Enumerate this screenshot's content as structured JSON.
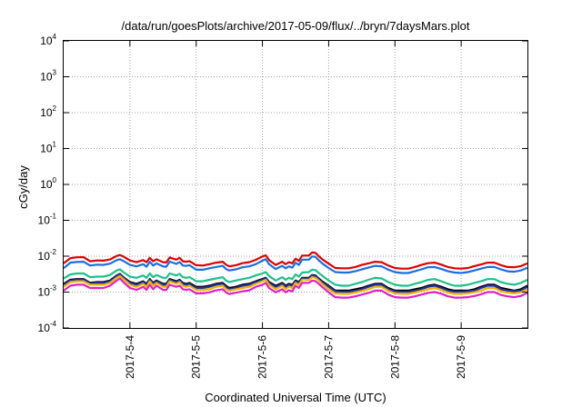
{
  "chart_data": {
    "type": "line",
    "title": "/data/run/goesPlots/archive/2017-05-09/flux/../bryn/7daysMars.plot",
    "xlabel": "Coordinated Universal Time (UTC)",
    "ylabel": "cGy/day",
    "yscale": "log",
    "ylim": [
      0.0001,
      10000
    ],
    "xlim": [
      "2017-05-03 00:00",
      "2017-05-10 00:00"
    ],
    "grid": true,
    "legend": "none",
    "y_ticks": [
      {
        "base": "10",
        "exp": "-4",
        "value": 0.0001
      },
      {
        "base": "10",
        "exp": "-3",
        "value": 0.001
      },
      {
        "base": "10",
        "exp": "-2",
        "value": 0.01
      },
      {
        "base": "10",
        "exp": "-1",
        "value": 0.1
      },
      {
        "base": "10",
        "exp": "0",
        "value": 1
      },
      {
        "base": "10",
        "exp": "1",
        "value": 10
      },
      {
        "base": "10",
        "exp": "2",
        "value": 100
      },
      {
        "base": "10",
        "exp": "3",
        "value": 1000
      },
      {
        "base": "10",
        "exp": "4",
        "value": 10000
      }
    ],
    "x_ticks": [
      {
        "label": "2017-5-4",
        "day": 4
      },
      {
        "label": "2017-5-5",
        "day": 5
      },
      {
        "label": "2017-5-6",
        "day": 6
      },
      {
        "label": "2017-5-7",
        "day": 7
      },
      {
        "label": "2017-5-8",
        "day": 8
      },
      {
        "label": "2017-5-9",
        "day": 9
      }
    ],
    "x_day_values": [
      3.0,
      3.1,
      3.2,
      3.3,
      3.4,
      3.5,
      3.6,
      3.7,
      3.8,
      3.85,
      3.9,
      4.0,
      4.1,
      4.2,
      4.25,
      4.3,
      4.35,
      4.4,
      4.5,
      4.55,
      4.6,
      4.7,
      4.75,
      4.8,
      4.85,
      4.9,
      5.0,
      5.1,
      5.2,
      5.3,
      5.4,
      5.45,
      5.5,
      5.6,
      5.7,
      5.8,
      5.9,
      6.0,
      6.05,
      6.1,
      6.2,
      6.3,
      6.35,
      6.4,
      6.45,
      6.5,
      6.55,
      6.6,
      6.7,
      6.75,
      6.8,
      6.85,
      6.9,
      7.0,
      7.1,
      7.2,
      7.3,
      7.4,
      7.5,
      7.6,
      7.7,
      7.8,
      7.9,
      8.0,
      8.1,
      8.2,
      8.3,
      8.4,
      8.5,
      8.6,
      8.7,
      8.8,
      8.9,
      9.0,
      9.1,
      9.2,
      9.3,
      9.4,
      9.5,
      9.6,
      9.7,
      9.8,
      9.9,
      10.0
    ],
    "series": [
      {
        "color": "#e00000",
        "values": [
          0.0063,
          0.0088,
          0.0093,
          0.0094,
          0.0072,
          0.0076,
          0.0075,
          0.0081,
          0.0102,
          0.0108,
          0.0098,
          0.0076,
          0.0068,
          0.0078,
          0.0068,
          0.009,
          0.0072,
          0.0082,
          0.0068,
          0.0067,
          0.0092,
          0.008,
          0.009,
          0.0072,
          0.007,
          0.0073,
          0.0056,
          0.0055,
          0.006,
          0.0066,
          0.007,
          0.0058,
          0.0052,
          0.0056,
          0.0064,
          0.0068,
          0.0079,
          0.0098,
          0.0106,
          0.0078,
          0.0057,
          0.007,
          0.006,
          0.0068,
          0.0063,
          0.0085,
          0.0074,
          0.0104,
          0.0104,
          0.0127,
          0.0124,
          0.01,
          0.0083,
          0.0062,
          0.0047,
          0.0046,
          0.0046,
          0.005,
          0.0057,
          0.0063,
          0.007,
          0.0068,
          0.0055,
          0.0047,
          0.0045,
          0.0045,
          0.005,
          0.0057,
          0.0064,
          0.0066,
          0.0058,
          0.005,
          0.0046,
          0.0045,
          0.0047,
          0.0053,
          0.0059,
          0.0066,
          0.0066,
          0.0056,
          0.005,
          0.0049,
          0.0053,
          0.0063
        ]
      },
      {
        "color": "#1a6fe0",
        "values": [
          0.0046,
          0.0066,
          0.0069,
          0.007,
          0.0055,
          0.0058,
          0.0057,
          0.0062,
          0.0078,
          0.0082,
          0.0074,
          0.0057,
          0.0052,
          0.006,
          0.0051,
          0.007,
          0.0055,
          0.0063,
          0.0052,
          0.0051,
          0.0071,
          0.0061,
          0.0069,
          0.0055,
          0.0054,
          0.0056,
          0.0042,
          0.0042,
          0.0046,
          0.005,
          0.0054,
          0.0044,
          0.004,
          0.0043,
          0.0049,
          0.0052,
          0.006,
          0.0075,
          0.0082,
          0.006,
          0.0044,
          0.0054,
          0.0046,
          0.0052,
          0.0048,
          0.0066,
          0.0057,
          0.008,
          0.008,
          0.0098,
          0.0096,
          0.0077,
          0.0064,
          0.0047,
          0.0036,
          0.0035,
          0.0035,
          0.0038,
          0.0043,
          0.0048,
          0.0054,
          0.0052,
          0.0042,
          0.0036,
          0.0034,
          0.0034,
          0.0038,
          0.0043,
          0.0049,
          0.005,
          0.0044,
          0.0038,
          0.0035,
          0.0034,
          0.0036,
          0.004,
          0.0045,
          0.005,
          0.005,
          0.0043,
          0.0038,
          0.0037,
          0.004,
          0.0048
        ]
      },
      {
        "color": "#1ec08c",
        "values": [
          0.0024,
          0.0031,
          0.0033,
          0.0033,
          0.0026,
          0.0027,
          0.0027,
          0.003,
          0.004,
          0.0043,
          0.0036,
          0.0027,
          0.0025,
          0.0029,
          0.0025,
          0.0033,
          0.0026,
          0.003,
          0.0025,
          0.0025,
          0.0033,
          0.0029,
          0.0032,
          0.0026,
          0.0025,
          0.0026,
          0.002,
          0.002,
          0.0022,
          0.0024,
          0.0026,
          0.0021,
          0.0019,
          0.0021,
          0.0023,
          0.0025,
          0.0029,
          0.0033,
          0.0036,
          0.0028,
          0.0021,
          0.0026,
          0.0022,
          0.0025,
          0.0023,
          0.0031,
          0.0027,
          0.0035,
          0.0036,
          0.0042,
          0.0041,
          0.0034,
          0.0029,
          0.0021,
          0.0016,
          0.0015,
          0.0015,
          0.0017,
          0.0019,
          0.0022,
          0.0025,
          0.0024,
          0.0019,
          0.0016,
          0.0015,
          0.0015,
          0.0017,
          0.0019,
          0.0022,
          0.0023,
          0.002,
          0.0017,
          0.0015,
          0.0015,
          0.0016,
          0.0018,
          0.002,
          0.0023,
          0.0023,
          0.0019,
          0.0017,
          0.0016,
          0.0018,
          0.0022
        ]
      },
      {
        "color": "#000000",
        "values": [
          0.0017,
          0.0022,
          0.0023,
          0.0023,
          0.0018,
          0.0019,
          0.0019,
          0.0021,
          0.0029,
          0.0032,
          0.0026,
          0.0019,
          0.0017,
          0.002,
          0.0017,
          0.0023,
          0.0018,
          0.0021,
          0.0017,
          0.0017,
          0.0023,
          0.002,
          0.0022,
          0.0018,
          0.0017,
          0.0018,
          0.0014,
          0.0014,
          0.0015,
          0.0017,
          0.0018,
          0.0015,
          0.0013,
          0.0014,
          0.0016,
          0.0017,
          0.002,
          0.0023,
          0.0025,
          0.0019,
          0.0015,
          0.0018,
          0.0015,
          0.0017,
          0.0016,
          0.0021,
          0.0019,
          0.0025,
          0.0025,
          0.003,
          0.0029,
          0.0024,
          0.002,
          0.0015,
          0.0011,
          0.0011,
          0.0011,
          0.0012,
          0.0013,
          0.0015,
          0.0017,
          0.0017,
          0.0013,
          0.0011,
          0.0011,
          0.0011,
          0.0012,
          0.0013,
          0.0015,
          0.0016,
          0.0014,
          0.0012,
          0.0011,
          0.0011,
          0.0011,
          0.0012,
          0.0014,
          0.0016,
          0.0016,
          0.0013,
          0.0012,
          0.0011,
          0.0012,
          0.0015
        ]
      },
      {
        "color": "#2233a0",
        "values": [
          0.0016,
          0.0021,
          0.0022,
          0.0022,
          0.0017,
          0.0018,
          0.0018,
          0.002,
          0.0028,
          0.0031,
          0.0025,
          0.0018,
          0.0016,
          0.0019,
          0.0016,
          0.0022,
          0.0017,
          0.002,
          0.0016,
          0.0016,
          0.0022,
          0.0019,
          0.0021,
          0.0017,
          0.0016,
          0.0017,
          0.0013,
          0.0013,
          0.0014,
          0.0016,
          0.0017,
          0.0014,
          0.0012,
          0.0013,
          0.0015,
          0.0016,
          0.0019,
          0.0022,
          0.0024,
          0.0018,
          0.0014,
          0.0017,
          0.0014,
          0.0016,
          0.0015,
          0.002,
          0.0018,
          0.0024,
          0.0024,
          0.0029,
          0.0028,
          0.0023,
          0.0019,
          0.0014,
          0.00105,
          0.00102,
          0.00102,
          0.0011,
          0.0012,
          0.0014,
          0.0016,
          0.0016,
          0.0012,
          0.00105,
          0.00102,
          0.00102,
          0.0011,
          0.0012,
          0.0014,
          0.0015,
          0.0013,
          0.0011,
          0.00102,
          0.00102,
          0.00105,
          0.0011,
          0.0013,
          0.0015,
          0.0015,
          0.0012,
          0.0011,
          0.00105,
          0.0011,
          0.0014
        ]
      },
      {
        "color": "#f0b400",
        "values": [
          0.0014,
          0.0019,
          0.002,
          0.002,
          0.0016,
          0.0016,
          0.0016,
          0.0018,
          0.0025,
          0.0028,
          0.0023,
          0.0016,
          0.0014,
          0.0017,
          0.0014,
          0.002,
          0.0015,
          0.0018,
          0.0014,
          0.0014,
          0.002,
          0.0017,
          0.0019,
          0.0015,
          0.0014,
          0.0015,
          0.00115,
          0.00115,
          0.0012,
          0.0014,
          0.0015,
          0.0012,
          0.0011,
          0.0012,
          0.0013,
          0.0014,
          0.0017,
          0.002,
          0.0022,
          0.0016,
          0.0012,
          0.0015,
          0.0012,
          0.0014,
          0.0013,
          0.0018,
          0.0016,
          0.0022,
          0.0022,
          0.0026,
          0.0025,
          0.0021,
          0.0017,
          0.0012,
          0.00092,
          0.00089,
          0.00089,
          0.00097,
          0.00108,
          0.0012,
          0.0014,
          0.0014,
          0.00108,
          0.00092,
          0.00089,
          0.00089,
          0.00097,
          0.00108,
          0.0012,
          0.0013,
          0.00115,
          0.00097,
          0.00089,
          0.00089,
          0.00092,
          0.00099,
          0.0011,
          0.0013,
          0.0013,
          0.00105,
          0.00097,
          0.00092,
          0.00099,
          0.0012
        ]
      },
      {
        "color": "#e020c8",
        "values": [
          0.0011,
          0.0015,
          0.0016,
          0.0016,
          0.0013,
          0.0013,
          0.0013,
          0.0015,
          0.0021,
          0.0024,
          0.0019,
          0.0013,
          0.00115,
          0.0014,
          0.00115,
          0.0016,
          0.0012,
          0.0015,
          0.00115,
          0.00115,
          0.0016,
          0.0014,
          0.0015,
          0.0012,
          0.00115,
          0.0012,
          0.00092,
          0.00092,
          0.00098,
          0.00112,
          0.0012,
          0.00098,
          0.00088,
          0.00096,
          0.00105,
          0.00112,
          0.0014,
          0.0016,
          0.0018,
          0.0013,
          0.00098,
          0.0012,
          0.00098,
          0.00112,
          0.00105,
          0.0015,
          0.0013,
          0.0018,
          0.0018,
          0.0021,
          0.002,
          0.0017,
          0.0014,
          0.00098,
          0.00072,
          0.0007,
          0.0007,
          0.00076,
          0.00085,
          0.00095,
          0.0011,
          0.0011,
          0.00085,
          0.00072,
          0.0007,
          0.0007,
          0.00076,
          0.00085,
          0.00095,
          0.001,
          0.0009,
          0.00076,
          0.0007,
          0.0007,
          0.00072,
          0.00078,
          0.00087,
          0.001,
          0.001,
          0.00083,
          0.00076,
          0.00072,
          0.00078,
          0.00095
        ]
      }
    ]
  }
}
